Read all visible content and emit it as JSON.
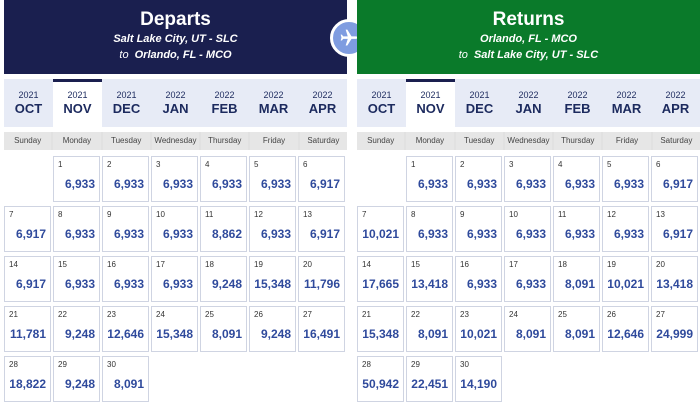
{
  "departs": {
    "title": "Departs",
    "from": "Salt Lake City, UT - SLC",
    "to_label": "to",
    "to": "Orlando, FL - MCO",
    "months": [
      {
        "year": "2021",
        "name": "OCT"
      },
      {
        "year": "2021",
        "name": "NOV"
      },
      {
        "year": "2021",
        "name": "DEC"
      },
      {
        "year": "2022",
        "name": "JAN"
      },
      {
        "year": "2022",
        "name": "FEB"
      },
      {
        "year": "2022",
        "name": "MAR"
      },
      {
        "year": "2022",
        "name": "APR"
      }
    ],
    "active_month": "NOV",
    "weekdays": [
      "Sunday",
      "Monday",
      "Tuesday",
      "Wednesday",
      "Thursday",
      "Friday",
      "Saturday"
    ],
    "days": [
      {
        "day": "1",
        "price": "6,933"
      },
      {
        "day": "2",
        "price": "6,933"
      },
      {
        "day": "3",
        "price": "6,933"
      },
      {
        "day": "4",
        "price": "6,933"
      },
      {
        "day": "5",
        "price": "6,933"
      },
      {
        "day": "6",
        "price": "6,917"
      },
      {
        "day": "7",
        "price": "6,917"
      },
      {
        "day": "8",
        "price": "6,933"
      },
      {
        "day": "9",
        "price": "6,933"
      },
      {
        "day": "10",
        "price": "6,933"
      },
      {
        "day": "11",
        "price": "8,862"
      },
      {
        "day": "12",
        "price": "6,933"
      },
      {
        "day": "13",
        "price": "6,917"
      },
      {
        "day": "14",
        "price": "6,917"
      },
      {
        "day": "15",
        "price": "6,933"
      },
      {
        "day": "16",
        "price": "6,933"
      },
      {
        "day": "17",
        "price": "6,933"
      },
      {
        "day": "18",
        "price": "9,248"
      },
      {
        "day": "19",
        "price": "15,348"
      },
      {
        "day": "20",
        "price": "11,796"
      },
      {
        "day": "21",
        "price": "11,781"
      },
      {
        "day": "22",
        "price": "9,248"
      },
      {
        "day": "23",
        "price": "12,646"
      },
      {
        "day": "24",
        "price": "15,348"
      },
      {
        "day": "25",
        "price": "8,091"
      },
      {
        "day": "26",
        "price": "9,248"
      },
      {
        "day": "27",
        "price": "16,491"
      },
      {
        "day": "28",
        "price": "18,822"
      },
      {
        "day": "29",
        "price": "9,248"
      },
      {
        "day": "30",
        "price": "8,091"
      }
    ]
  },
  "returns": {
    "title": "Returns",
    "from": "Orlando, FL - MCO",
    "to_label": "to",
    "to": "Salt Lake City, UT - SLC",
    "months": [
      {
        "year": "2021",
        "name": "OCT"
      },
      {
        "year": "2021",
        "name": "NOV"
      },
      {
        "year": "2021",
        "name": "DEC"
      },
      {
        "year": "2022",
        "name": "JAN"
      },
      {
        "year": "2022",
        "name": "FEB"
      },
      {
        "year": "2022",
        "name": "MAR"
      },
      {
        "year": "2022",
        "name": "APR"
      }
    ],
    "active_month": "NOV",
    "weekdays": [
      "Sunday",
      "Monday",
      "Tuesday",
      "Wednesday",
      "Thursday",
      "Friday",
      "Saturday"
    ],
    "days": [
      {
        "day": "1",
        "price": "6,933"
      },
      {
        "day": "2",
        "price": "6,933"
      },
      {
        "day": "3",
        "price": "6,933"
      },
      {
        "day": "4",
        "price": "6,933"
      },
      {
        "day": "5",
        "price": "6,933"
      },
      {
        "day": "6",
        "price": "6,917"
      },
      {
        "day": "7",
        "price": "10,021"
      },
      {
        "day": "8",
        "price": "6,933"
      },
      {
        "day": "9",
        "price": "6,933"
      },
      {
        "day": "10",
        "price": "6,933"
      },
      {
        "day": "11",
        "price": "6,933"
      },
      {
        "day": "12",
        "price": "6,933"
      },
      {
        "day": "13",
        "price": "6,917"
      },
      {
        "day": "14",
        "price": "17,665"
      },
      {
        "day": "15",
        "price": "13,418"
      },
      {
        "day": "16",
        "price": "6,933"
      },
      {
        "day": "17",
        "price": "6,933"
      },
      {
        "day": "18",
        "price": "8,091"
      },
      {
        "day": "19",
        "price": "10,021"
      },
      {
        "day": "20",
        "price": "13,418"
      },
      {
        "day": "21",
        "price": "15,348"
      },
      {
        "day": "22",
        "price": "8,091"
      },
      {
        "day": "23",
        "price": "10,021"
      },
      {
        "day": "24",
        "price": "8,091"
      },
      {
        "day": "25",
        "price": "8,091"
      },
      {
        "day": "26",
        "price": "12,646"
      },
      {
        "day": "27",
        "price": "24,999"
      },
      {
        "day": "28",
        "price": "50,942"
      },
      {
        "day": "29",
        "price": "22,451"
      },
      {
        "day": "30",
        "price": "14,190"
      }
    ]
  },
  "colors": {
    "departs_header": "#1a1f4f",
    "returns_header": "#0a7a2a",
    "price": "#2f4a9c",
    "plane_circle": "#7f9ce0"
  },
  "center_icon": "airplane-icon"
}
